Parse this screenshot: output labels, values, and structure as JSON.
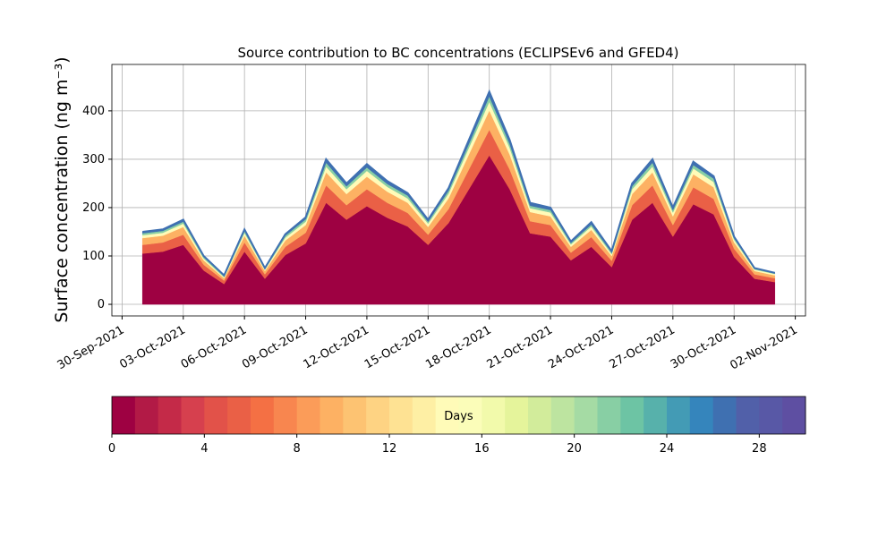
{
  "chart_data": {
    "type": "stacked_area",
    "title": "Source contribution to BC concentrations (ECLIPSEv6 and GFED4)",
    "y_label": "Surface concentration (ng m⁻³)",
    "x": [
      "2021-10-01",
      "2021-10-02",
      "2021-10-03",
      "2021-10-04",
      "2021-10-05",
      "2021-10-06",
      "2021-10-07",
      "2021-10-08",
      "2021-10-09",
      "2021-10-10",
      "2021-10-11",
      "2021-10-12",
      "2021-10-13",
      "2021-10-14",
      "2021-10-15",
      "2021-10-16",
      "2021-10-17",
      "2021-10-18",
      "2021-10-19",
      "2021-10-20",
      "2021-10-21",
      "2021-10-22",
      "2021-10-23",
      "2021-10-24",
      "2021-10-25",
      "2021-10-26",
      "2021-10-27",
      "2021-10-28",
      "2021-10-29",
      "2021-10-30",
      "2021-10-31",
      "2021-11-01"
    ],
    "series": [
      {
        "color": "#9e0142",
        "values": [
          105,
          109,
          123,
          70,
          42,
          109,
          53,
          102,
          126,
          210,
          175,
          203,
          179,
          161,
          123,
          168,
          238,
          308,
          238,
          147,
          140,
          91,
          119,
          77,
          175,
          210,
          140,
          207,
          186,
          98,
          53,
          46
        ]
      },
      {
        "color": "#ea6046",
        "values": [
          18,
          19,
          21,
          12,
          7,
          19,
          9,
          17,
          22,
          36,
          30,
          35,
          31,
          28,
          21,
          29,
          41,
          53,
          41,
          25,
          24,
          16,
          20,
          13,
          30,
          36,
          24,
          35,
          32,
          17,
          9,
          8
        ]
      },
      {
        "color": "#fdb163",
        "values": [
          14,
          14,
          16,
          9,
          5,
          14,
          7,
          13,
          16,
          27,
          23,
          26,
          23,
          21,
          16,
          22,
          31,
          40,
          31,
          19,
          18,
          12,
          15,
          10,
          23,
          27,
          18,
          27,
          24,
          13,
          7,
          6
        ]
      },
      {
        "color": "#fffbb8",
        "values": [
          6,
          6,
          7,
          4,
          2,
          6,
          3,
          6,
          7,
          12,
          10,
          12,
          10,
          9,
          7,
          10,
          14,
          18,
          14,
          8,
          8,
          5,
          7,
          4,
          10,
          12,
          8,
          12,
          11,
          6,
          3,
          3
        ]
      },
      {
        "color": "#88cfa4",
        "values": [
          4,
          4,
          4,
          3,
          2,
          4,
          2,
          4,
          5,
          8,
          6,
          7,
          6,
          6,
          4,
          6,
          8,
          11,
          8,
          5,
          5,
          3,
          4,
          3,
          6,
          8,
          5,
          7,
          7,
          3,
          2,
          1
        ]
      },
      {
        "color": "#3f70b1",
        "values": [
          3,
          3,
          4,
          2,
          2,
          3,
          1,
          3,
          4,
          7,
          6,
          7,
          6,
          5,
          4,
          5,
          8,
          10,
          8,
          6,
          5,
          3,
          5,
          3,
          6,
          7,
          5,
          7,
          5,
          3,
          1,
          1
        ]
      }
    ],
    "xlim": [
      "2021-09-29T12:00:00Z",
      "2021-11-02T12:00:00Z"
    ],
    "xticks": [
      {
        "value": "2021-09-30",
        "label": "30-Sep-2021"
      },
      {
        "value": "2021-10-03",
        "label": "03-Oct-2021"
      },
      {
        "value": "2021-10-06",
        "label": "06-Oct-2021"
      },
      {
        "value": "2021-10-09",
        "label": "09-Oct-2021"
      },
      {
        "value": "2021-10-12",
        "label": "12-Oct-2021"
      },
      {
        "value": "2021-10-15",
        "label": "15-Oct-2021"
      },
      {
        "value": "2021-10-18",
        "label": "18-Oct-2021"
      },
      {
        "value": "2021-10-21",
        "label": "21-Oct-2021"
      },
      {
        "value": "2021-10-24",
        "label": "24-Oct-2021"
      },
      {
        "value": "2021-10-27",
        "label": "27-Oct-2021"
      },
      {
        "value": "2021-10-30",
        "label": "30-Oct-2021"
      },
      {
        "value": "2021-11-02",
        "label": "02-Nov-2021"
      }
    ],
    "ylim": [
      -24,
      496
    ],
    "yticks": [
      0,
      100,
      200,
      300,
      400
    ],
    "grid": true,
    "colorbar": {
      "label": "Days",
      "lim": [
        0,
        30
      ],
      "ticks": [
        0,
        4,
        8,
        12,
        16,
        20,
        24,
        28
      ],
      "colors": [
        "#9e0142",
        "#b21a46",
        "#c42a48",
        "#d6404e",
        "#e25249",
        "#ea6046",
        "#f47044",
        "#f8864f",
        "#fb9c59",
        "#fdb163",
        "#fdc372",
        "#fed383",
        "#fee293",
        "#feefa4",
        "#fffbb8",
        "#fbfdb9",
        "#f2faab",
        "#e5f49b",
        "#d2ec9b",
        "#bde4a0",
        "#a5dba4",
        "#88cfa4",
        "#6dc4a4",
        "#57b1ab",
        "#439bb5",
        "#3585bc",
        "#3f70b1",
        "#5160a9",
        "#5858a6",
        "#5e4fa2"
      ]
    }
  }
}
